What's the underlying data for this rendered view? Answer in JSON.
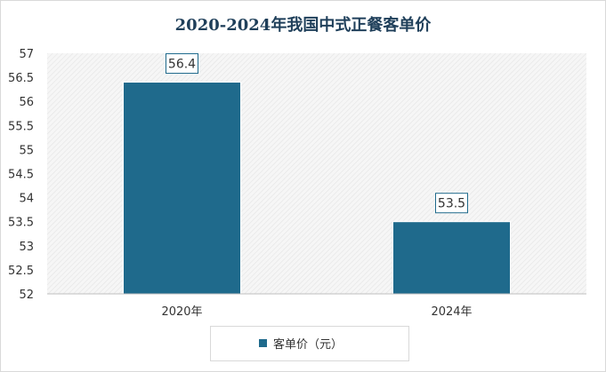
{
  "chart_data": {
    "type": "bar",
    "title": "2020-2024年我国中式正餐客单价",
    "categories": [
      "2020年",
      "2024年"
    ],
    "series": [
      {
        "name": "客单价（元）",
        "values": [
          56.4,
          53.5
        ]
      }
    ],
    "data_labels": [
      "56.4",
      "53.5"
    ],
    "ylim": [
      52,
      57
    ],
    "yticks": [
      52,
      52.5,
      53,
      53.5,
      54,
      54.5,
      55,
      55.5,
      56,
      56.5,
      57
    ],
    "grid": false,
    "plot_background": "hatched",
    "legend_position": "bottom",
    "bar_color": "#1f6a8c"
  }
}
